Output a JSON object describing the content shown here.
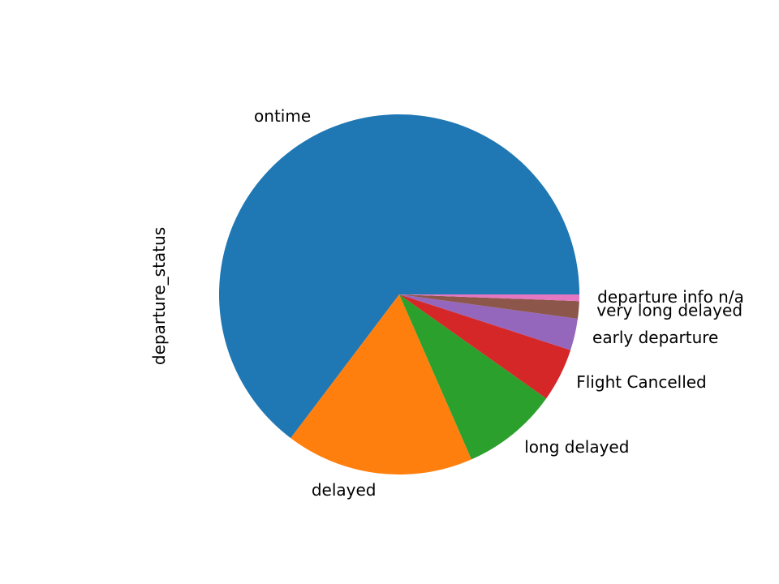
{
  "chart_data": {
    "type": "pie",
    "title": "",
    "ylabel": "departure_status",
    "start_angle_deg": 0,
    "direction": "counterclockwise",
    "slices": [
      {
        "label": "ontime",
        "value": 66.0,
        "color": "#1f77b4"
      },
      {
        "label": "delayed",
        "value": 17.2,
        "color": "#ff7f0e"
      },
      {
        "label": "long delayed",
        "value": 8.8,
        "color": "#2ca02c"
      },
      {
        "label": "Flight Cancelled",
        "value": 4.9,
        "color": "#d62728"
      },
      {
        "label": "early departure",
        "value": 2.9,
        "color": "#9467bd"
      },
      {
        "label": "very long delayed",
        "value": 1.6,
        "color": "#8c564b"
      },
      {
        "label": "departure info n/a",
        "value": 0.6,
        "color": "#e377c2"
      }
    ]
  }
}
